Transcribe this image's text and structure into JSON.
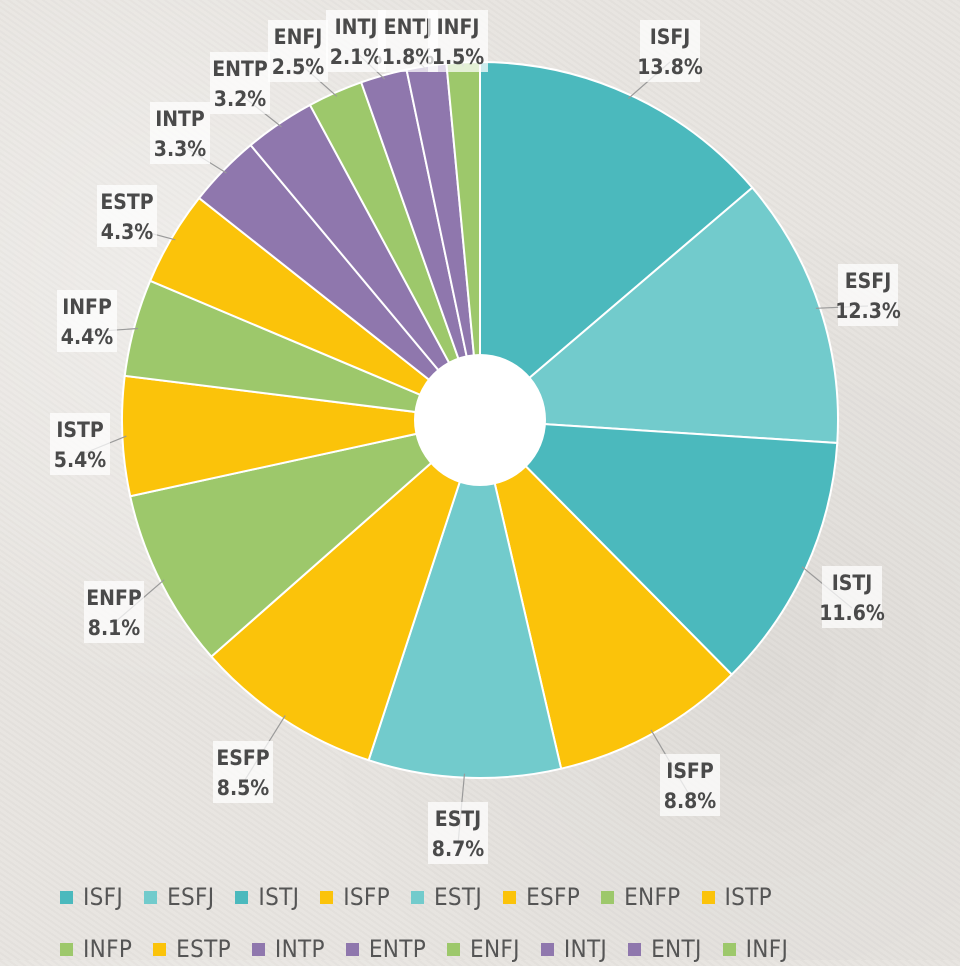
{
  "chart_data": {
    "type": "pie",
    "donut": true,
    "categories": [
      "ISFJ",
      "ESFJ",
      "ISTJ",
      "ISFP",
      "ESTJ",
      "ESFP",
      "ENFP",
      "ISTP",
      "INFP",
      "ESTP",
      "INTP",
      "ENTP",
      "ENFJ",
      "INTJ",
      "ENTJ",
      "INFJ"
    ],
    "values": [
      13.8,
      12.3,
      11.6,
      8.8,
      8.7,
      8.5,
      8.1,
      5.4,
      4.4,
      4.3,
      3.3,
      3.2,
      2.5,
      2.1,
      1.8,
      1.5
    ],
    "value_labels": [
      "13.8%",
      "12.3%",
      "11.6%",
      "8.8%",
      "8.7%",
      "8.5%",
      "8.1%",
      "5.4%",
      "4.4%",
      "4.3%",
      "3.3%",
      "3.2%",
      "2.5%",
      "2.1%",
      "1.8%",
      "1.5%"
    ],
    "colors": [
      "#4bb9bd",
      "#72cbcc",
      "#4bb9bd",
      "#fbc30a",
      "#72cbcc",
      "#fbc30a",
      "#9dc86b",
      "#fbc30a",
      "#9dc86b",
      "#fbc30a",
      "#8f77ad",
      "#8f77ad",
      "#9dc86b",
      "#8f77ad",
      "#8f77ad",
      "#9dc86b"
    ],
    "legend_placement": "bottom",
    "start": "12 o'clock",
    "direction": "clockwise"
  },
  "legend": {
    "rows": [
      [
        {
          "label": "ISFJ",
          "color": "#4bb9bd"
        },
        {
          "label": "ESFJ",
          "color": "#72cbcc"
        },
        {
          "label": "ISTJ",
          "color": "#4bb9bd"
        },
        {
          "label": "ISFP",
          "color": "#fbc30a"
        },
        {
          "label": "ESTJ",
          "color": "#72cbcc"
        },
        {
          "label": "ESFP",
          "color": "#fbc30a"
        },
        {
          "label": "ENFP",
          "color": "#9dc86b"
        },
        {
          "label": "ISTP",
          "color": "#fbc30a"
        }
      ],
      [
        {
          "label": "INFP",
          "color": "#9dc86b"
        },
        {
          "label": "ESTP",
          "color": "#fbc30a"
        },
        {
          "label": "INTP",
          "color": "#8f77ad"
        },
        {
          "label": "ENTP",
          "color": "#8f77ad"
        },
        {
          "label": "ENFJ",
          "color": "#9dc86b"
        },
        {
          "label": "INTJ",
          "color": "#8f77ad"
        },
        {
          "label": "ENTJ",
          "color": "#8f77ad"
        },
        {
          "label": "INFJ",
          "color": "#9dc86b"
        }
      ]
    ]
  }
}
